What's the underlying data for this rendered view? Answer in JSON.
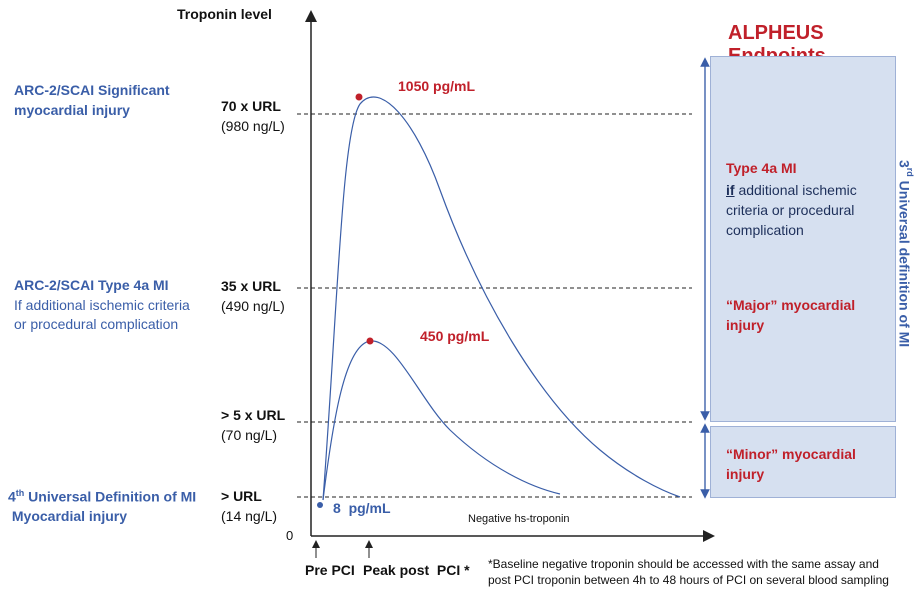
{
  "axis": {
    "y_label": "Troponin level",
    "origin_label": "0"
  },
  "header": {
    "title": "ALPHEUS Endpoints"
  },
  "left_labels": {
    "significant": "ARC-2/SCAI Significant\nmyocardial injury",
    "type4a_title": "ARC-2/SCAI  Type 4a MI",
    "type4a_desc": "If additional ischemic criteria\nor procedural complication",
    "fourth_sup": "th",
    "fourth_title": " Universal Definition of MI",
    "fourth_num": "4",
    "myocardial_injury": " Myocardial injury"
  },
  "levels": [
    {
      "label": "70 x URL",
      "sub": "(980 ng/L)"
    },
    {
      "label": "35 x URL",
      "sub": "(490 ng/L)"
    },
    {
      "label": "> 5 x URL",
      "sub": "(70 ng/L)"
    },
    {
      "label": "> URL",
      "sub": "(14 ng/L)"
    }
  ],
  "peaks": {
    "high": "1050 pg/mL",
    "low": "450 pg/mL",
    "baseline": "8  pg/mL"
  },
  "negative_label": "Negative hs-troponin",
  "x_labels": {
    "pre": "Pre PCI",
    "peak": "Peak post  PCI *"
  },
  "footnote": "*Baseline negative troponin should be accessed with the same assay and post PCI troponin between 4h to 48 hours of PCI on several blood sampling",
  "endpoints": {
    "type4a_title": "Type 4a MI",
    "if_word": "if",
    "type4a_rest": " additional ischemic criteria or procedural complication",
    "major": "“Major” myocardial injury",
    "minor": "“Minor” myocardial injury"
  },
  "vertical_label": {
    "prefix": "3",
    "sup": "rd",
    "text": " Universal definition of MI"
  },
  "colors": {
    "blue_text": "#3a5ea8",
    "red_text": "#c0202a",
    "curve": "#3a5ea8",
    "box_fill": "#d6e0f0"
  }
}
